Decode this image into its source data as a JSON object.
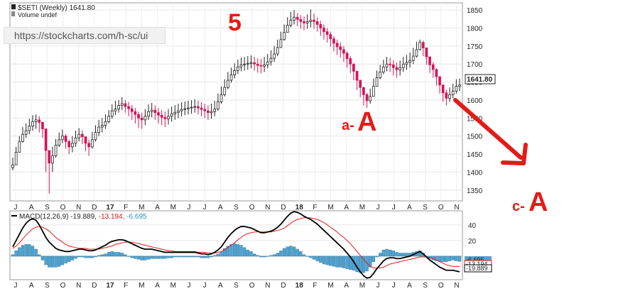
{
  "price_panel": {
    "legend_title": "$SETI (Weekly) 1641.80",
    "volume_label": "Volume undef",
    "last_price_label": "1641.80"
  },
  "url_bar": {
    "text": "https://stockcharts.com/h-sc/ui"
  },
  "annotations": {
    "wave5": "5",
    "waveA_prefix": "a-",
    "waveA_letter": "A",
    "waveC_prefix": "c-",
    "waveC_letter": "A"
  },
  "macd_panel": {
    "legend_prefix": "MACD(12,26,9)",
    "legend_macd": "-19.889,",
    "legend_signal": "-13.194,",
    "legend_hist": "-6.695",
    "box_hist": "-6.695",
    "box_signal": "-13.194",
    "box_macd": "-19.889"
  },
  "colors": {
    "up_candle": "#ffffff",
    "down_candle": "#d4145a",
    "macd_line": "#000000",
    "signal_line": "#e41b17",
    "histogram": "#4fa3d1",
    "annotation": "#e41b17"
  },
  "chart_data": [
    {
      "type": "candlestick",
      "title": "$SETI (Weekly) 1641.80",
      "ylim": [
        1320,
        1870
      ],
      "y_ticks": [
        "1850",
        "1800",
        "1750",
        "1700",
        "1650",
        "1600",
        "1550",
        "1500",
        "1450",
        "1400",
        "1350"
      ],
      "x_ticks": [
        "J",
        "A",
        "S",
        "O",
        "N",
        "D",
        "17",
        "F",
        "M",
        "A",
        "M",
        "J",
        "J",
        "A",
        "S",
        "O",
        "N",
        "D",
        "18",
        "F",
        "M",
        "A",
        "M",
        "J",
        "J",
        "A",
        "S",
        "O",
        "N"
      ],
      "close": [
        1420,
        1455,
        1485,
        1505,
        1515,
        1528,
        1540,
        1545,
        1538,
        1520,
        1460,
        1425,
        1445,
        1475,
        1490,
        1500,
        1485,
        1470,
        1480,
        1495,
        1505,
        1498,
        1480,
        1470,
        1490,
        1510,
        1525,
        1530,
        1540,
        1555,
        1570,
        1575,
        1585,
        1590,
        1582,
        1576,
        1568,
        1560,
        1550,
        1545,
        1555,
        1568,
        1572,
        1565,
        1558,
        1552,
        1548,
        1555,
        1562,
        1566,
        1570,
        1574,
        1576,
        1578,
        1580,
        1582,
        1578,
        1574,
        1570,
        1565,
        1568,
        1575,
        1595,
        1615,
        1635,
        1655,
        1670,
        1682,
        1692,
        1698,
        1700,
        1702,
        1704,
        1700,
        1696,
        1694,
        1698,
        1706,
        1716,
        1728,
        1746,
        1768,
        1788,
        1808,
        1822,
        1830,
        1824,
        1818,
        1814,
        1818,
        1822,
        1818,
        1810,
        1800,
        1790,
        1782,
        1770,
        1758,
        1748,
        1740,
        1730,
        1715,
        1700,
        1680,
        1655,
        1635,
        1615,
        1598,
        1610,
        1638,
        1662,
        1678,
        1692,
        1700,
        1698,
        1690,
        1684,
        1690,
        1700,
        1705,
        1710,
        1722,
        1740,
        1760,
        1745,
        1720,
        1698,
        1685,
        1665,
        1642,
        1620,
        1605,
        1615,
        1625,
        1638,
        1641.8
      ],
      "low": [
        1405,
        1430,
        1460,
        1482,
        1495,
        1505,
        1515,
        1520,
        1510,
        1495,
        1400,
        1340,
        1400,
        1440,
        1470,
        1480,
        1465,
        1450,
        1455,
        1470,
        1485,
        1478,
        1458,
        1445,
        1465,
        1485,
        1500,
        1510,
        1520,
        1535,
        1548,
        1558,
        1565,
        1572,
        1565,
        1555,
        1545,
        1535,
        1522,
        1520,
        1530,
        1545,
        1552,
        1545,
        1535,
        1530,
        1525,
        1532,
        1540,
        1545,
        1550,
        1555,
        1558,
        1560,
        1562,
        1565,
        1560,
        1555,
        1550,
        1545,
        1548,
        1555,
        1570,
        1590,
        1610,
        1630,
        1648,
        1660,
        1672,
        1680,
        1682,
        1685,
        1688,
        1682,
        1676,
        1674,
        1678,
        1688,
        1696,
        1706,
        1722,
        1745,
        1765,
        1788,
        1802,
        1810,
        1805,
        1798,
        1794,
        1798,
        1802,
        1798,
        1790,
        1778,
        1768,
        1760,
        1748,
        1735,
        1725,
        1718,
        1706,
        1690,
        1675,
        1655,
        1628,
        1608,
        1585,
        1578,
        1590,
        1615,
        1640,
        1658,
        1672,
        1680,
        1678,
        1668,
        1662,
        1668,
        1678,
        1684,
        1690,
        1700,
        1718,
        1738,
        1722,
        1698,
        1675,
        1662,
        1640,
        1618,
        1595,
        1585,
        1595,
        1605,
        1618,
        1625
      ],
      "high": [
        1440,
        1470,
        1500,
        1525,
        1535,
        1548,
        1558,
        1560,
        1555,
        1540,
        1490,
        1460,
        1470,
        1492,
        1510,
        1518,
        1505,
        1490,
        1500,
        1515,
        1522,
        1516,
        1498,
        1490,
        1512,
        1530,
        1545,
        1550,
        1560,
        1572,
        1588,
        1598,
        1600,
        1608,
        1600,
        1595,
        1586,
        1578,
        1568,
        1565,
        1575,
        1588,
        1592,
        1585,
        1578,
        1572,
        1568,
        1575,
        1582,
        1586,
        1590,
        1594,
        1596,
        1598,
        1600,
        1602,
        1598,
        1594,
        1590,
        1585,
        1590,
        1598,
        1618,
        1638,
        1658,
        1678,
        1690,
        1702,
        1712,
        1718,
        1720,
        1722,
        1724,
        1720,
        1716,
        1714,
        1720,
        1728,
        1738,
        1750,
        1768,
        1790,
        1810,
        1830,
        1845,
        1850,
        1842,
        1836,
        1832,
        1838,
        1852,
        1840,
        1830,
        1820,
        1810,
        1800,
        1790,
        1778,
        1768,
        1760,
        1750,
        1735,
        1722,
        1702,
        1678,
        1656,
        1636,
        1620,
        1632,
        1660,
        1682,
        1698,
        1712,
        1720,
        1718,
        1710,
        1704,
        1710,
        1720,
        1725,
        1732,
        1745,
        1762,
        1768,
        1765,
        1740,
        1718,
        1705,
        1688,
        1665,
        1640,
        1628,
        1635,
        1645,
        1658,
        1660
      ]
    },
    {
      "type": "line",
      "title": "MACD(12,26,9) -19.889, -13.194, -6.695",
      "ylim": [
        -30,
        58
      ],
      "y_ticks": [
        "40",
        "20"
      ],
      "series": [
        {
          "name": "MACD(12,26,9)",
          "values": [
            12,
            20,
            28,
            36,
            42,
            46,
            48,
            46,
            40,
            32,
            24,
            18,
            14,
            10,
            8,
            7,
            6,
            6,
            7,
            8,
            9,
            9,
            8,
            7,
            7,
            8,
            10,
            12,
            14,
            17,
            19,
            20,
            21,
            21,
            20,
            18,
            16,
            14,
            12,
            10,
            9,
            9,
            9,
            8,
            7,
            6,
            5,
            5,
            5,
            5,
            5,
            5,
            5,
            5,
            5,
            5,
            4,
            3,
            3,
            2,
            3,
            5,
            8,
            12,
            18,
            24,
            29,
            33,
            36,
            38,
            38,
            37,
            36,
            34,
            32,
            30,
            30,
            31,
            32,
            34,
            37,
            41,
            46,
            51,
            55,
            57,
            56,
            54,
            51,
            49,
            47,
            44,
            41,
            37,
            33,
            29,
            25,
            21,
            17,
            13,
            9,
            4,
            -1,
            -7,
            -14,
            -20,
            -25,
            -28,
            -27,
            -22,
            -16,
            -11,
            -6,
            -3,
            -2,
            -2,
            -3,
            -3,
            -2,
            -1,
            0,
            2,
            4,
            6,
            3,
            -1,
            -5,
            -8,
            -11,
            -14,
            -16,
            -18,
            -18,
            -18,
            -19,
            -19.889
          ]
        },
        {
          "name": "Signal",
          "values": [
            10,
            13,
            17,
            22,
            27,
            31,
            35,
            37,
            38,
            37,
            35,
            32,
            28,
            24,
            21,
            18,
            15,
            13,
            12,
            11,
            10,
            10,
            10,
            9,
            9,
            9,
            9,
            10,
            11,
            12,
            13,
            15,
            16,
            17,
            18,
            18,
            18,
            17,
            16,
            15,
            14,
            13,
            12,
            11,
            10,
            9,
            8,
            7,
            7,
            6,
            6,
            6,
            6,
            6,
            6,
            6,
            5,
            5,
            5,
            4,
            4,
            4,
            5,
            6,
            8,
            11,
            14,
            17,
            21,
            24,
            27,
            29,
            30,
            31,
            31,
            31,
            31,
            31,
            31,
            32,
            33,
            34,
            36,
            39,
            42,
            45,
            47,
            48,
            49,
            49,
            49,
            48,
            47,
            45,
            43,
            40,
            37,
            34,
            31,
            27,
            24,
            20,
            16,
            11,
            6,
            1,
            -4,
            -9,
            -13,
            -15,
            -15,
            -15,
            -14,
            -12,
            -10,
            -9,
            -8,
            -7,
            -6,
            -5,
            -4,
            -3,
            -2,
            -1,
            -1,
            -1,
            -2,
            -3,
            -5,
            -7,
            -9,
            -11,
            -12,
            -13,
            -13,
            -13.194
          ]
        },
        {
          "name": "Histogram",
          "values": [
            2,
            7,
            11,
            14,
            15,
            15,
            13,
            9,
            2,
            -5,
            -11,
            -14,
            -14,
            -14,
            -13,
            -11,
            -9,
            -7,
            -5,
            -3,
            -1,
            -1,
            -2,
            -2,
            -2,
            -1,
            1,
            2,
            3,
            5,
            6,
            5,
            5,
            4,
            2,
            0,
            -2,
            -3,
            -4,
            -5,
            -5,
            -4,
            -3,
            -3,
            -3,
            -3,
            -3,
            -2,
            -2,
            -1,
            -1,
            -1,
            -1,
            -1,
            -1,
            -1,
            -1,
            -2,
            -2,
            -2,
            -1,
            1,
            3,
            6,
            10,
            13,
            15,
            16,
            15,
            14,
            11,
            8,
            6,
            3,
            1,
            -1,
            -1,
            0,
            1,
            2,
            4,
            7,
            10,
            12,
            13,
            12,
            9,
            6,
            2,
            0,
            -2,
            -4,
            -6,
            -8,
            -10,
            -11,
            -12,
            -13,
            -14,
            -14,
            -15,
            -16,
            -17,
            -18,
            -20,
            -21,
            -21,
            -19,
            -14,
            -7,
            -1,
            4,
            8,
            9,
            8,
            7,
            5,
            4,
            4,
            4,
            4,
            5,
            6,
            7,
            4,
            0,
            -3,
            -5,
            -6,
            -7,
            -7,
            -7,
            -6,
            -5,
            -6,
            -6.695
          ]
        }
      ],
      "x_ticks": [
        "J",
        "A",
        "S",
        "O",
        "N",
        "D",
        "17",
        "F",
        "M",
        "A",
        "M",
        "J",
        "J",
        "A",
        "S",
        "O",
        "N",
        "D",
        "18",
        "F",
        "M",
        "A",
        "M",
        "J",
        "J",
        "A",
        "S",
        "O",
        "N"
      ]
    }
  ]
}
